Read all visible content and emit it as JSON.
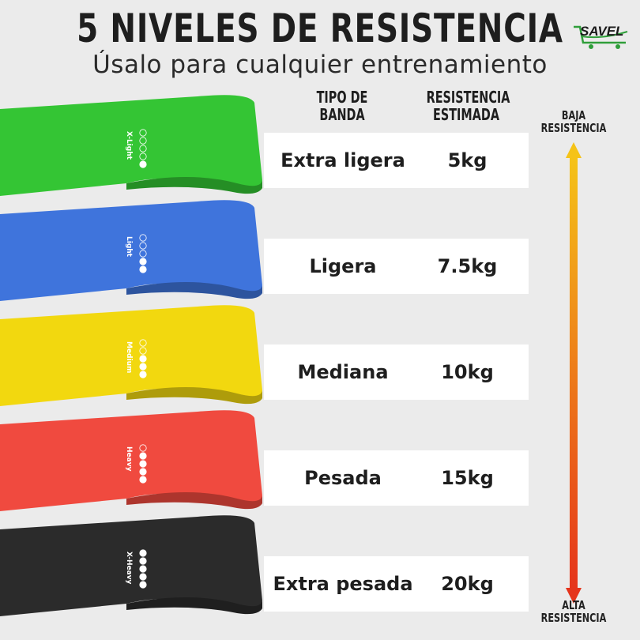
{
  "header": {
    "title": "5 NIVELES DE RESISTENCIA",
    "subtitle": "Úsalo para cualquier entrenamiento"
  },
  "logo": {
    "text": "SAVEL"
  },
  "columns": {
    "type_line1": "TIPO DE",
    "type_line2": "BANDA",
    "resistance_line1": "RESISTENCIA",
    "resistance_line2": "ESTIMADA"
  },
  "bands": [
    {
      "type": "Extra ligera",
      "resistance": "5kg",
      "band_label": "X-Light",
      "level": 1,
      "color": "#34c534"
    },
    {
      "type": "Ligera",
      "resistance": "7.5kg",
      "band_label": "Light",
      "level": 2,
      "color": "#3f74dc"
    },
    {
      "type": "Mediana",
      "resistance": "10kg",
      "band_label": "Medium",
      "level": 3,
      "color": "#f2d80f"
    },
    {
      "type": "Pesada",
      "resistance": "15kg",
      "band_label": "Heavy",
      "level": 4,
      "color": "#f04a3f"
    },
    {
      "type": "Extra pesada",
      "resistance": "20kg",
      "band_label": "X-Heavy",
      "level": 5,
      "color": "#2b2b2b"
    }
  ],
  "scale": {
    "top_line1": "BAJA",
    "top_line2": "RESISTENCIA",
    "bottom_line1": "ALTA",
    "bottom_line2": "RESISTENCIA",
    "gradient_top": "#f5c318",
    "gradient_bottom": "#e5341b"
  }
}
